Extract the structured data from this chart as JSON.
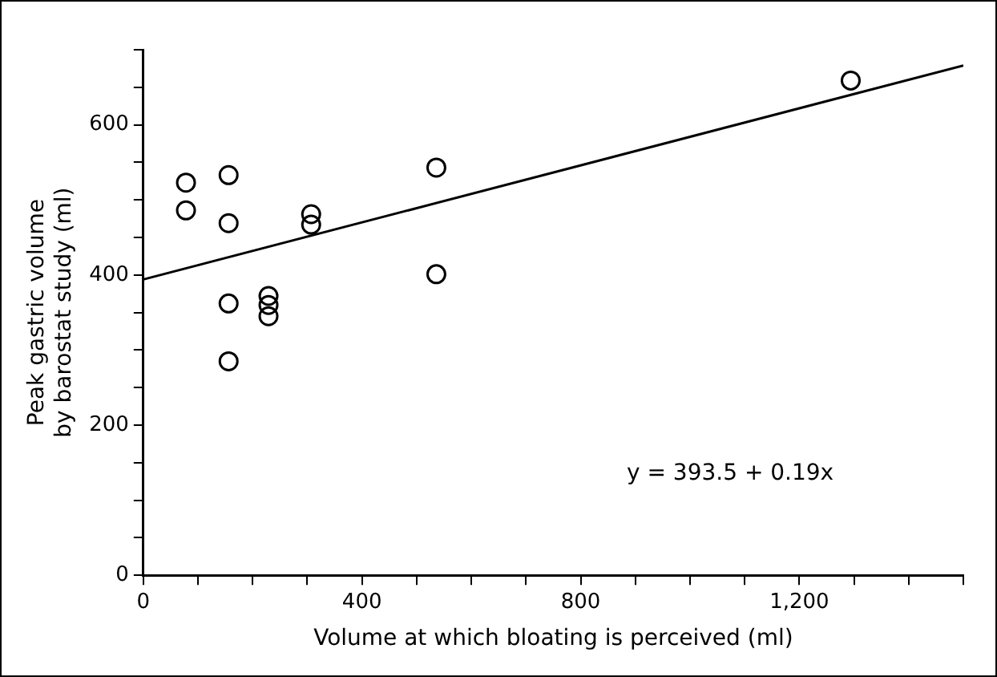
{
  "chart_data": {
    "type": "scatter",
    "xlabel": "Volume at which bloating is perceived (ml)",
    "ylabel": "Peak gastric volume\nby barostat study (ml)",
    "series": [
      {
        "marker": "circle",
        "color": "#000000",
        "x": [
          78,
          78,
          156,
          156,
          156,
          156,
          229,
          229,
          229,
          307,
          307,
          536,
          536,
          1294
        ],
        "values": [
          523,
          486,
          533,
          469,
          362,
          285,
          372,
          360,
          345,
          481,
          467,
          543,
          401,
          659
        ]
      },
      {
        "type": "line",
        "color": "#000000",
        "x": [
          0,
          1500
        ],
        "values": [
          394,
          679
        ]
      }
    ],
    "xlim": [
      0,
      1500
    ],
    "xticks": [
      0,
      {
        "value": 100,
        "label": null
      },
      {
        "value": 200,
        "label": null
      },
      {
        "value": 300,
        "label": null
      },
      400,
      {
        "value": 500,
        "label": null
      },
      {
        "value": 600,
        "label": null
      },
      {
        "value": 700,
        "label": null
      },
      {
        "value": 800,
        "label": "800"
      },
      {
        "value": 900,
        "label": null
      },
      {
        "value": 1000,
        "label": null
      },
      {
        "value": 1100,
        "label": null
      },
      {
        "value": 1200,
        "label": "1,200"
      },
      {
        "value": 1300,
        "label": null
      },
      {
        "value": 1400,
        "label": null
      },
      {
        "value": 1500,
        "label": null
      }
    ],
    "ylim": [
      0,
      700
    ],
    "yticks": [
      0,
      {
        "value": 50,
        "label": null
      },
      {
        "value": 100,
        "label": null
      },
      {
        "value": 150,
        "label": null
      },
      200,
      {
        "value": 250,
        "label": null
      },
      {
        "value": 300,
        "label": null
      },
      {
        "value": 350,
        "label": null
      },
      400,
      {
        "value": 450,
        "label": null
      },
      {
        "value": 500,
        "label": null
      },
      {
        "value": 550,
        "label": null
      },
      600,
      {
        "value": 650,
        "label": null
      },
      {
        "value": 700,
        "label": null
      }
    ],
    "annotations": [
      "y = 393.5 + 0.19x"
    ],
    "grid": false,
    "legend": false
  }
}
